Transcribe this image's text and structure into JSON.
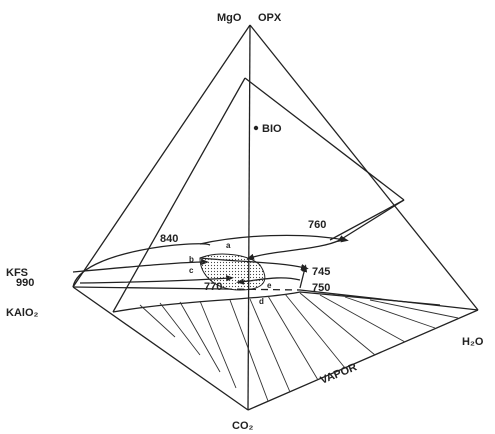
{
  "labels": {
    "mgo": "MgO",
    "opx": "OPX",
    "bio": "BIO",
    "kfs": "KFS",
    "kalo2": "KAlO₂",
    "h2o": "H₂O",
    "co2": "CO₂",
    "vapor": "VAPOR"
  },
  "temperatures": [
    "840",
    "760",
    "990",
    "745",
    "770",
    "750"
  ],
  "points": [
    "a",
    "b",
    "c",
    "d",
    "e"
  ]
}
